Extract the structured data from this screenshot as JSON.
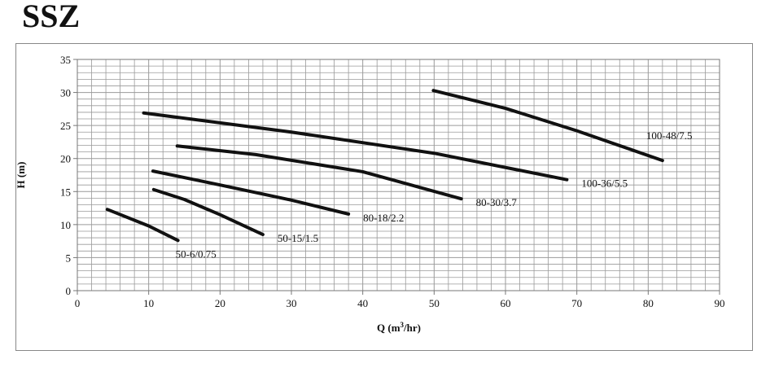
{
  "title": "SSZ",
  "chart_data": {
    "type": "line",
    "title": "SSZ",
    "xlabel": "Q (m³/hr)",
    "xlabel_main": "Q (m",
    "xlabel_sup": "3",
    "xlabel_tail": "/hr)",
    "ylabel": "H (m)",
    "xlim": [
      0,
      90
    ],
    "ylim": [
      0,
      35
    ],
    "xticks": [
      0,
      10,
      20,
      30,
      40,
      50,
      60,
      70,
      80,
      90
    ],
    "yticks": [
      0,
      5,
      10,
      15,
      20,
      25,
      30,
      35
    ],
    "grid": true,
    "series": [
      {
        "name": "50-6/0.75",
        "x": [
          4.2,
          10,
          14.1
        ],
        "y": [
          12.3,
          9.8,
          7.6
        ]
      },
      {
        "name": "50-15/1.5",
        "x": [
          10.7,
          15,
          20,
          26
        ],
        "y": [
          15.3,
          13.8,
          11.5,
          8.5
        ]
      },
      {
        "name": "80-18/2.2",
        "x": [
          10.6,
          20,
          30,
          38
        ],
        "y": [
          18.1,
          16,
          13.7,
          11.6
        ]
      },
      {
        "name": "80-30/3.7",
        "x": [
          14,
          25,
          40,
          53.8
        ],
        "y": [
          21.9,
          20.6,
          18,
          13.9
        ]
      },
      {
        "name": "100-36/5.5",
        "x": [
          9.3,
          30,
          50,
          68.6
        ],
        "y": [
          26.9,
          24,
          20.8,
          16.8
        ]
      },
      {
        "name": "100-48/7.5",
        "x": [
          49.9,
          60,
          70,
          82
        ],
        "y": [
          30.3,
          27.6,
          24.2,
          19.7
        ]
      }
    ]
  }
}
